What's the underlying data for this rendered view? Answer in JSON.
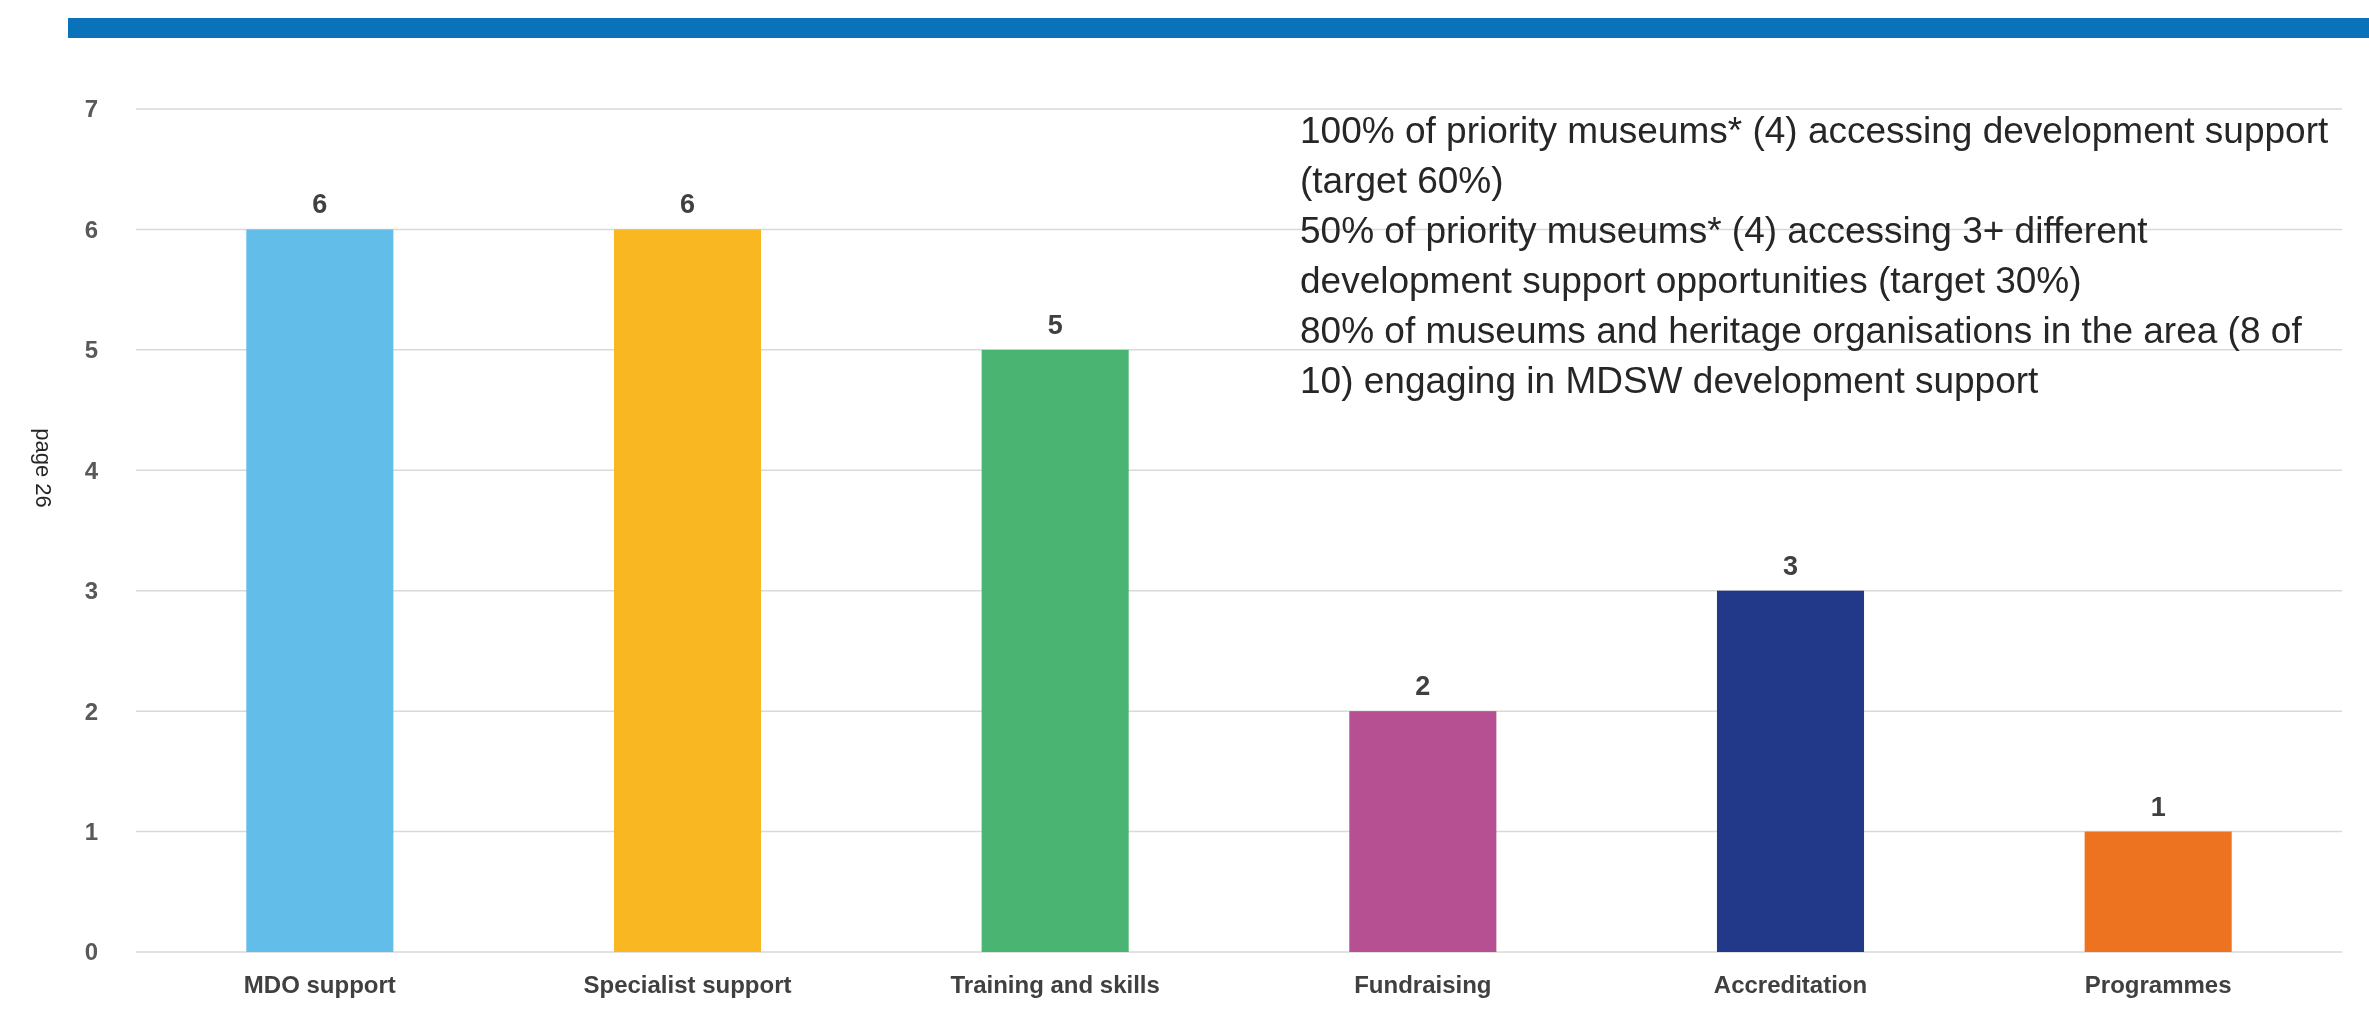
{
  "chart_data": {
    "type": "bar",
    "categories": [
      "MDO support",
      "Specialist support",
      "Training and skills",
      "Fundraising",
      "Accreditation",
      "Programmes"
    ],
    "values": [
      6,
      6,
      5,
      2,
      3,
      1
    ],
    "colors": [
      "#62bee9",
      "#f9b821",
      "#4ab573",
      "#b74f93",
      "#22398a",
      "#ed7320"
    ],
    "ylim": [
      0,
      7
    ],
    "yticks": [
      0,
      1,
      2,
      3,
      4,
      5,
      6,
      7
    ],
    "grid": "y",
    "data_labels": true,
    "annotations": [
      "100% of priority museums* (4) accessing development support (target 60%)",
      "50% of priority museums* (4) accessing 3+ different development support opportunities (target 30%)",
      "80% of museums and heritage organisations in the area (8 of 10) engaging in MDSW development support",
      "page 26"
    ]
  }
}
